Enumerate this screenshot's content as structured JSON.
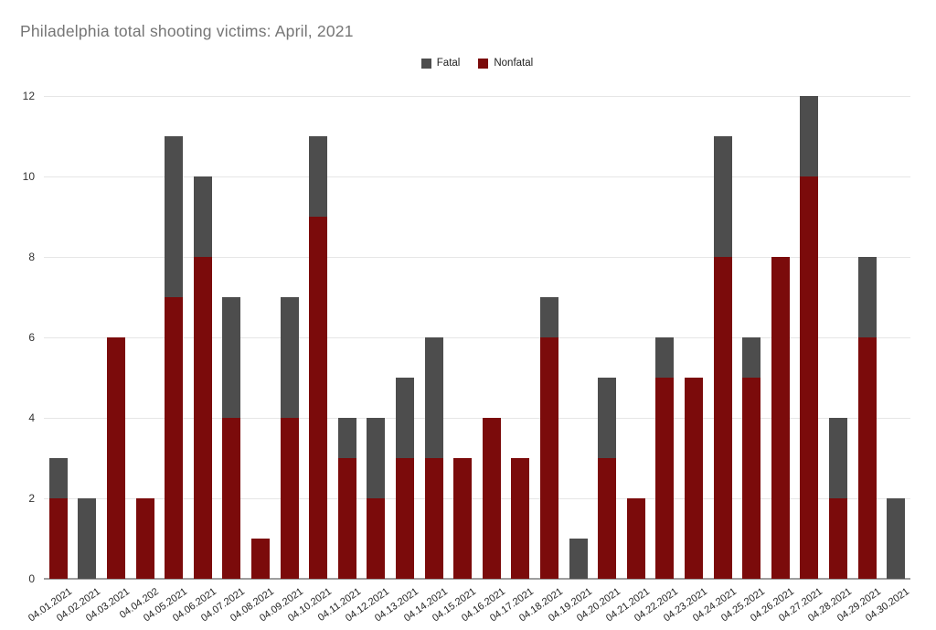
{
  "title": "Philadelphia total shooting victims: April, 2021",
  "legend": {
    "items": [
      {
        "label": "Fatal",
        "color": "#4d4d4d"
      },
      {
        "label": "Nonfatal",
        "color": "#7b0b0b"
      }
    ]
  },
  "colors": {
    "fatal": "#4d4d4d",
    "nonfatal": "#7b0b0b",
    "gridline": "#e6e6e6",
    "axis_line": "#9e9e9e",
    "title_text": "#757575",
    "tick_text": "#222222"
  },
  "chart_data": {
    "type": "bar",
    "stacked": true,
    "title": "Philadelphia total shooting victims: April, 2021",
    "xlabel": "",
    "ylabel": "",
    "ylim": [
      0,
      12
    ],
    "yticks": [
      0,
      2,
      4,
      6,
      8,
      10,
      12
    ],
    "grid": true,
    "legend_position": "top-center",
    "categories": [
      "04.01.2021",
      "04.02.2021",
      "04.03.2021",
      "04.04.202",
      "04.05.2021",
      "04.06.2021",
      "04.07.2021",
      "04.08.2021",
      "04.09.2021",
      "04.10.2021",
      "04.11.2021",
      "04.12.2021",
      "04.13.2021",
      "04.14.2021",
      "04.15.2021",
      "04.16.2021",
      "04.17.2021",
      "04.18.2021",
      "04.19.2021",
      "04.20.2021",
      "04.21.2021",
      "04.22.2021",
      "04.23.2021",
      "04.24.2021",
      "04.25.2021",
      "04.26.2021",
      "04.27.2021",
      "04.28.2021",
      "04.29.2021",
      "04.30.2021"
    ],
    "series": [
      {
        "name": "Fatal",
        "color": "#4d4d4d",
        "values": [
          1,
          2,
          0,
          0,
          4,
          2,
          3,
          0,
          3,
          2,
          1,
          2,
          2,
          3,
          0,
          0,
          0,
          1,
          1,
          2,
          0,
          1,
          0,
          3,
          1,
          0,
          2,
          2,
          2,
          2
        ]
      },
      {
        "name": "Nonfatal",
        "color": "#7b0b0b",
        "values": [
          2,
          0,
          6,
          2,
          7,
          8,
          4,
          1,
          4,
          9,
          3,
          2,
          3,
          3,
          3,
          4,
          3,
          6,
          0,
          3,
          2,
          5,
          5,
          8,
          5,
          8,
          10,
          2,
          6,
          0
        ]
      }
    ]
  }
}
